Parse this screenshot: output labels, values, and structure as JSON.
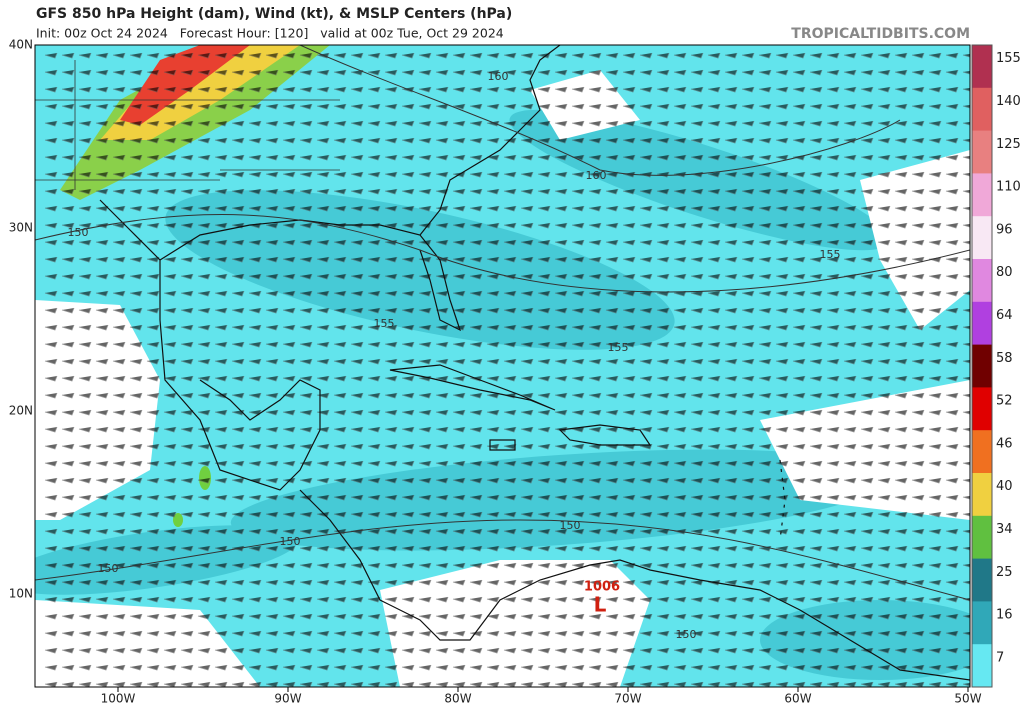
{
  "header": {
    "title": "GFS 850 hPa Height (dam), Wind (kt), & MSLP Centers (hPa)",
    "subtitle": "Init: 00z Oct 24 2024   Forecast Hour: [120]   valid at 00z Tue, Oct 29 2024",
    "site": "TROPICALTIDBITS.COM"
  },
  "map": {
    "lat_labels": [
      "40N",
      "30N",
      "20N",
      "10N"
    ],
    "lon_labels": [
      "100W",
      "90W",
      "80W",
      "70W",
      "60W",
      "50W"
    ],
    "contour_labels": [
      "160",
      "160",
      "150",
      "155",
      "155",
      "155",
      "150",
      "150",
      "150",
      "150"
    ],
    "low": {
      "pressure": "1006",
      "symbol": "L"
    }
  },
  "colorbar": {
    "ticks": [
      155,
      140,
      125,
      110,
      96,
      80,
      64,
      58,
      52,
      46,
      40,
      34,
      25,
      16,
      7
    ],
    "colors": [
      "#b03050",
      "#e06060",
      "#e88080",
      "#f0a8d8",
      "#f8e8f4",
      "#e088e0",
      "#b040e0",
      "#700000",
      "#e00000",
      "#f07020",
      "#f0d040",
      "#60c040",
      "#207888",
      "#30a8b8",
      "#66e8f2"
    ]
  }
}
